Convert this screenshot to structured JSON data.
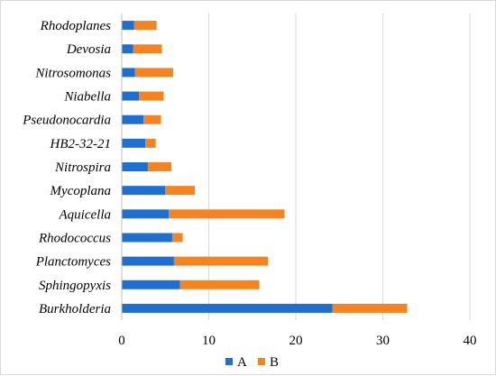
{
  "chart_data": {
    "type": "bar",
    "orientation": "horizontal",
    "stacked": true,
    "categories": [
      "Rhodoplanes",
      "Devosia",
      "Nitrosomonas",
      "Niabella",
      "Pseudonocardia",
      "HB2-32-21",
      "Nitrospira",
      "Mycoplana",
      "Aquicella",
      "Rhodococcus",
      "Planctomyces",
      "Sphingopyxis",
      "Burkholderia"
    ],
    "series": [
      {
        "name": "A",
        "color": "#1f6fd0",
        "values": [
          1.4,
          1.3,
          1.5,
          2.0,
          2.5,
          2.7,
          3.0,
          5.0,
          5.4,
          5.8,
          6.0,
          6.7,
          24.2
        ]
      },
      {
        "name": "B",
        "color": "#f58420",
        "values": [
          2.6,
          3.3,
          4.4,
          2.8,
          2.0,
          1.2,
          2.7,
          3.4,
          13.3,
          1.2,
          10.8,
          9.1,
          8.6
        ]
      }
    ],
    "xlim": [
      0,
      40
    ],
    "xticks": [
      "0",
      "10",
      "20",
      "30",
      "40"
    ],
    "grid": "vertical",
    "legend_position": "bottom"
  }
}
